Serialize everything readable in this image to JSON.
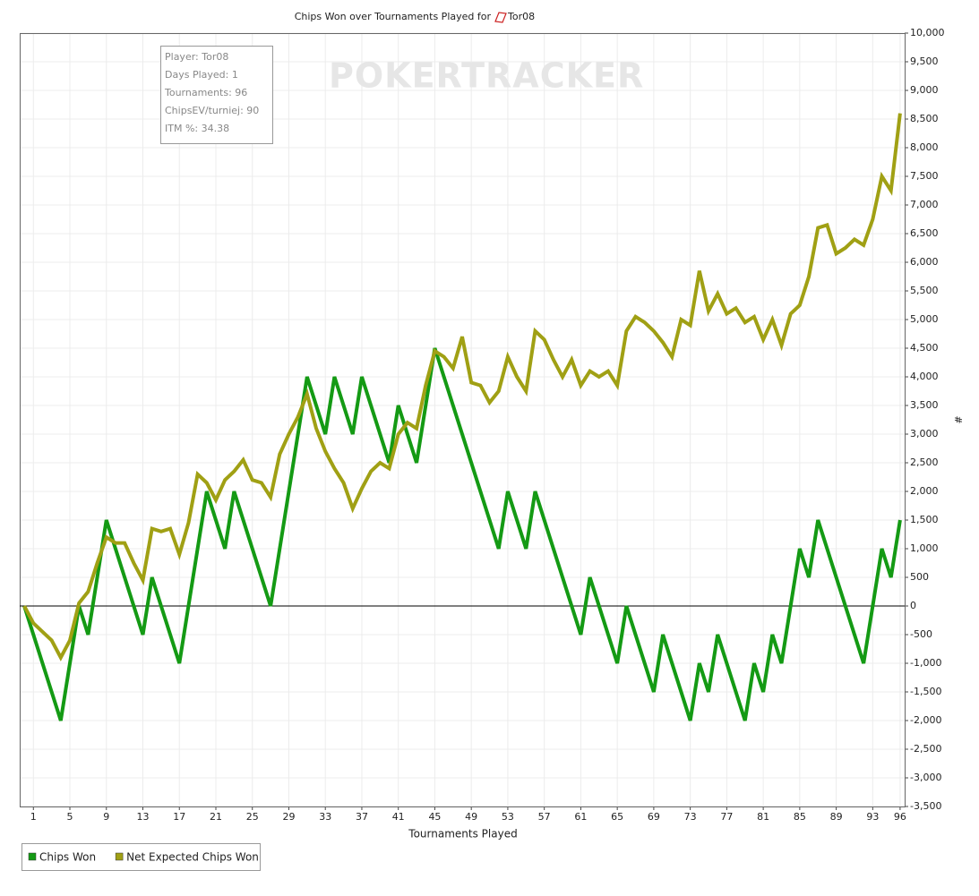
{
  "chart_data": {
    "type": "line",
    "title": "Chips Won over Tournaments Played for",
    "player": "Tor08",
    "watermark": "POKERTRACKER",
    "annotations": [
      "Player: Tor08",
      "Days Played: 1",
      "Tournaments: 96",
      "ChipsEV/turniej: 90",
      "ITM %: 34.38"
    ],
    "x_label": "Tournaments Played",
    "y_label": "#",
    "x": [
      0,
      1,
      2,
      3,
      4,
      5,
      6,
      7,
      8,
      9,
      10,
      11,
      12,
      13,
      14,
      15,
      16,
      17,
      18,
      19,
      20,
      21,
      22,
      23,
      24,
      25,
      26,
      27,
      28,
      29,
      30,
      31,
      32,
      33,
      34,
      35,
      36,
      37,
      38,
      39,
      40,
      41,
      42,
      43,
      44,
      45,
      46,
      47,
      48,
      49,
      50,
      51,
      52,
      53,
      54,
      55,
      56,
      57,
      58,
      59,
      60,
      61,
      62,
      63,
      64,
      65,
      66,
      67,
      68,
      69,
      70,
      71,
      72,
      73,
      74,
      75,
      76,
      77,
      78,
      79,
      80,
      81,
      82,
      83,
      84,
      85,
      86,
      87,
      88,
      89,
      90,
      91,
      92,
      93,
      94,
      95,
      96
    ],
    "series": [
      {
        "name": "Chips Won",
        "color": "#149a14",
        "values": [
          0,
          -500,
          -1000,
          -1500,
          -2000,
          -1000,
          0,
          -500,
          500,
          1500,
          1000,
          500,
          0,
          -500,
          500,
          0,
          -500,
          -1000,
          0,
          1000,
          2000,
          1500,
          1000,
          2000,
          1500,
          1000,
          500,
          0,
          1000,
          2000,
          3000,
          4000,
          3500,
          3000,
          4000,
          3500,
          3000,
          4000,
          3500,
          3000,
          2500,
          3500,
          3000,
          2500,
          3500,
          4500,
          4000,
          3500,
          3000,
          2500,
          2000,
          1500,
          1000,
          2000,
          1500,
          1000,
          2000,
          1500,
          1000,
          500,
          0,
          -500,
          500,
          0,
          -500,
          -1000,
          0,
          -500,
          -1000,
          -1500,
          -500,
          -1000,
          -1500,
          -2000,
          -1000,
          -1500,
          -500,
          -1000,
          -1500,
          -2000,
          -1000,
          -1500,
          -500,
          -1000,
          0,
          1000,
          500,
          1500,
          1000,
          500,
          0,
          -500,
          -1000,
          0,
          1000,
          500,
          1500
        ]
      },
      {
        "name": "Net Expected Chips Won",
        "color": "#a0a014",
        "values": [
          0,
          -300,
          -450,
          -600,
          -900,
          -600,
          50,
          250,
          750,
          1200,
          1100,
          1100,
          750,
          450,
          1350,
          1300,
          1350,
          900,
          1450,
          2300,
          2150,
          1850,
          2200,
          2350,
          2550,
          2200,
          2150,
          1900,
          2650,
          3000,
          3300,
          3700,
          3100,
          2700,
          2400,
          2150,
          1700,
          2050,
          2350,
          2500,
          2400,
          3000,
          3200,
          3100,
          3850,
          4450,
          4350,
          4150,
          4700,
          3900,
          3850,
          3550,
          3750,
          4350,
          4000,
          3750,
          4800,
          4650,
          4300,
          4000,
          4300,
          3850,
          4100,
          4000,
          4100,
          3850,
          4800,
          5050,
          4950,
          4800,
          4600,
          4350,
          5000,
          4900,
          5850,
          5150,
          5450,
          5100,
          5200,
          4950,
          5050,
          4650,
          5000,
          4550,
          5100,
          5250,
          5750,
          6600,
          6650,
          6150,
          6250,
          6400,
          6300,
          6750,
          7500,
          7250,
          8600
        ]
      }
    ],
    "xlim": [
      -0.5,
      96.5
    ],
    "xticks": [
      1,
      5,
      9,
      13,
      17,
      21,
      25,
      29,
      33,
      37,
      41,
      45,
      49,
      53,
      57,
      61,
      65,
      69,
      73,
      77,
      81,
      85,
      89,
      93,
      96
    ],
    "ylim": [
      -3500,
      10000
    ],
    "yticks": [
      {
        "value": -3500,
        "label": "-3,500"
      },
      {
        "value": -3000,
        "label": "-3,000"
      },
      {
        "value": -2500,
        "label": "-2,500"
      },
      {
        "value": -2000,
        "label": "-2,000"
      },
      {
        "value": -1500,
        "label": "-1,500"
      },
      {
        "value": -1000,
        "label": "-1,000"
      },
      -500,
      0,
      500,
      {
        "value": 1000,
        "label": "1,000"
      },
      {
        "value": 1500,
        "label": "1,500"
      },
      {
        "value": 2000,
        "label": "2,000"
      },
      {
        "value": 2500,
        "label": "2,500"
      },
      {
        "value": 3000,
        "label": "3,000"
      },
      {
        "value": 3500,
        "label": "3,500"
      },
      {
        "value": 4000,
        "label": "4,000"
      },
      {
        "value": 4500,
        "label": "4,500"
      },
      {
        "value": 5000,
        "label": "5,000"
      },
      {
        "value": 5500,
        "label": "5,500"
      },
      {
        "value": 6000,
        "label": "6,000"
      },
      {
        "value": 6500,
        "label": "6,500"
      },
      {
        "value": 7000,
        "label": "7,000"
      },
      {
        "value": 7500,
        "label": "7,500"
      },
      {
        "value": 8000,
        "label": "8,000"
      },
      {
        "value": 8500,
        "label": "8,500"
      },
      {
        "value": 9000,
        "label": "9,000"
      },
      {
        "value": 9500,
        "label": "9,500"
      },
      {
        "value": 10000,
        "label": "10,000"
      }
    ],
    "grid": true,
    "legend": "bottom-left"
  }
}
